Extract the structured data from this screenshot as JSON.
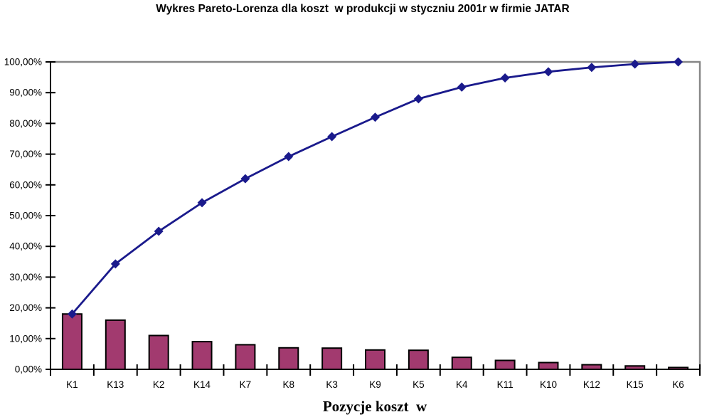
{
  "page": {
    "background": "#ffffff"
  },
  "chart_data": {
    "type": "combo",
    "title": "Wykres Pareto-Lorenza dla koszt  w produkcji w styczniu 2001r w firmie JATAR",
    "xlabel": "Pozycje koszt  w",
    "ylabel": "",
    "categories": [
      "K1",
      "K13",
      "K2",
      "K14",
      "K7",
      "K8",
      "K3",
      "K9",
      "K5",
      "K4",
      "K11",
      "K10",
      "K12",
      "K15",
      "K6"
    ],
    "series": [
      {
        "name": "udzial-kosztow-bar",
        "type": "bar",
        "color": "#A23A6F",
        "border_color": "#000000",
        "values": [
          18.0,
          16.0,
          11.0,
          9.0,
          8.0,
          7.0,
          6.9,
          6.3,
          6.2,
          3.9,
          2.9,
          2.2,
          1.5,
          1.1,
          0.6
        ]
      },
      {
        "name": "skumulowany-udzial-line",
        "type": "line",
        "color": "#1A1A8C",
        "marker": "diamond",
        "values": [
          18.0,
          34.3,
          44.9,
          54.2,
          62.0,
          69.2,
          75.7,
          82.0,
          88.0,
          91.8,
          94.8,
          96.8,
          98.2,
          99.3,
          100.0
        ]
      }
    ],
    "ylim": [
      0,
      100
    ],
    "ytick_step": 10,
    "ytick_labels": [
      "0,00%",
      "10,00%",
      "20,00%",
      "30,00%",
      "40,00%",
      "50,00%",
      "60,00%",
      "70,00%",
      "80,00%",
      "90,00%",
      "100,00%"
    ],
    "grid": false,
    "legend": "none",
    "axis_color": "#000000",
    "plot_border_color": "#868686"
  }
}
